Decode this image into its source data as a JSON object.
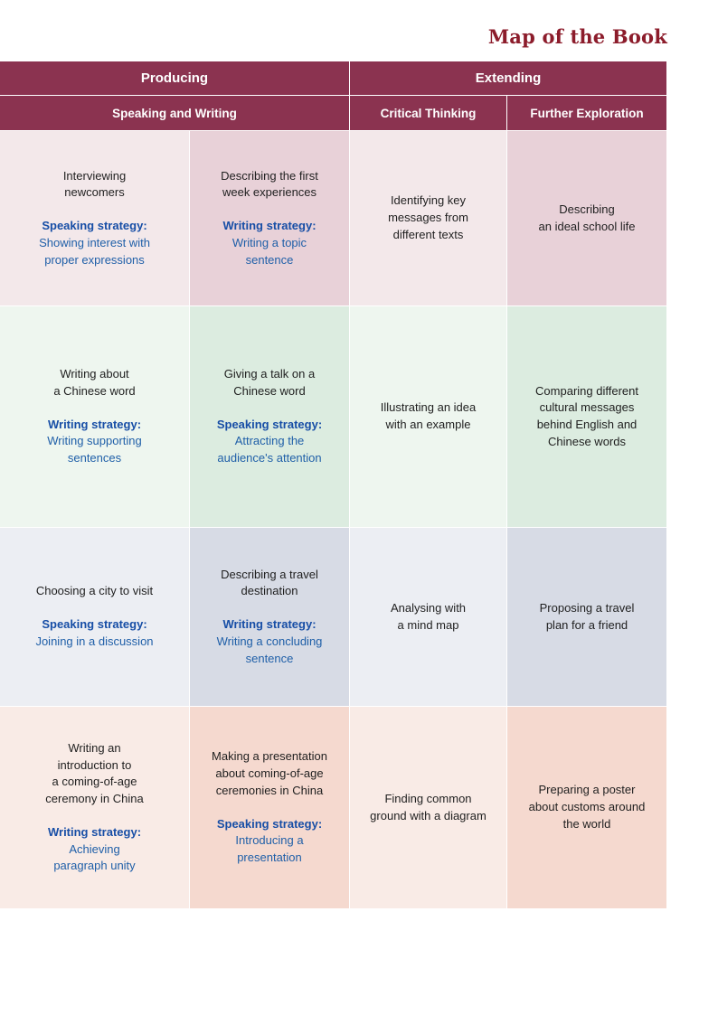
{
  "page": {
    "title": "Map of the Book"
  },
  "headers": {
    "producing": "Producing",
    "extending": "Extending",
    "speaking_writing": "Speaking and Writing",
    "critical_thinking": "Critical Thinking",
    "further_exploration": "Further Exploration"
  },
  "rows": [
    {
      "task1": {
        "desc": "Interviewing\nnewcomers",
        "strategy_label": "Speaking strategy:",
        "strategy": "Showing interest with\nproper expressions"
      },
      "task2": {
        "desc": "Describing the first\nweek experiences",
        "strategy_label": "Writing strategy:",
        "strategy": "Writing a topic\nsentence"
      },
      "critical": "Identifying key\nmessages from\ndifferent texts",
      "further": "Describing\nan ideal school life"
    },
    {
      "task1": {
        "desc": "Writing about\na Chinese word",
        "strategy_label": "Writing strategy:",
        "strategy": "Writing supporting\nsentences"
      },
      "task2": {
        "desc": "Giving a talk on a\nChinese word",
        "strategy_label": "Speaking strategy:",
        "strategy": "Attracting the\naudience's attention"
      },
      "critical": "Illustrating an idea\nwith an example",
      "further": "Comparing different\ncultural messages\nbehind English and\nChinese words"
    },
    {
      "task1": {
        "desc": "Choosing a city to visit",
        "strategy_label": "Speaking strategy:",
        "strategy": "Joining in a discussion"
      },
      "task2": {
        "desc": "Describing a travel\ndestination",
        "strategy_label": "Writing strategy:",
        "strategy": "Writing a concluding\nsentence"
      },
      "critical": "Analysing with\na mind map",
      "further": "Proposing a travel\nplan for a friend"
    },
    {
      "task1": {
        "desc": "Writing an\nintroduction to\na coming-of-age\nceremony in China",
        "strategy_label": "Writing strategy:",
        "strategy": "Achieving\nparagraph unity"
      },
      "task2": {
        "desc": "Making a presentation\nabout coming-of-age\nceremonies in China",
        "strategy_label": "Speaking strategy:",
        "strategy": "Introducing a\npresentation"
      },
      "critical": "Finding common\nground with a diagram",
      "further": "Preparing a poster\nabout customs around\nthe world"
    }
  ]
}
